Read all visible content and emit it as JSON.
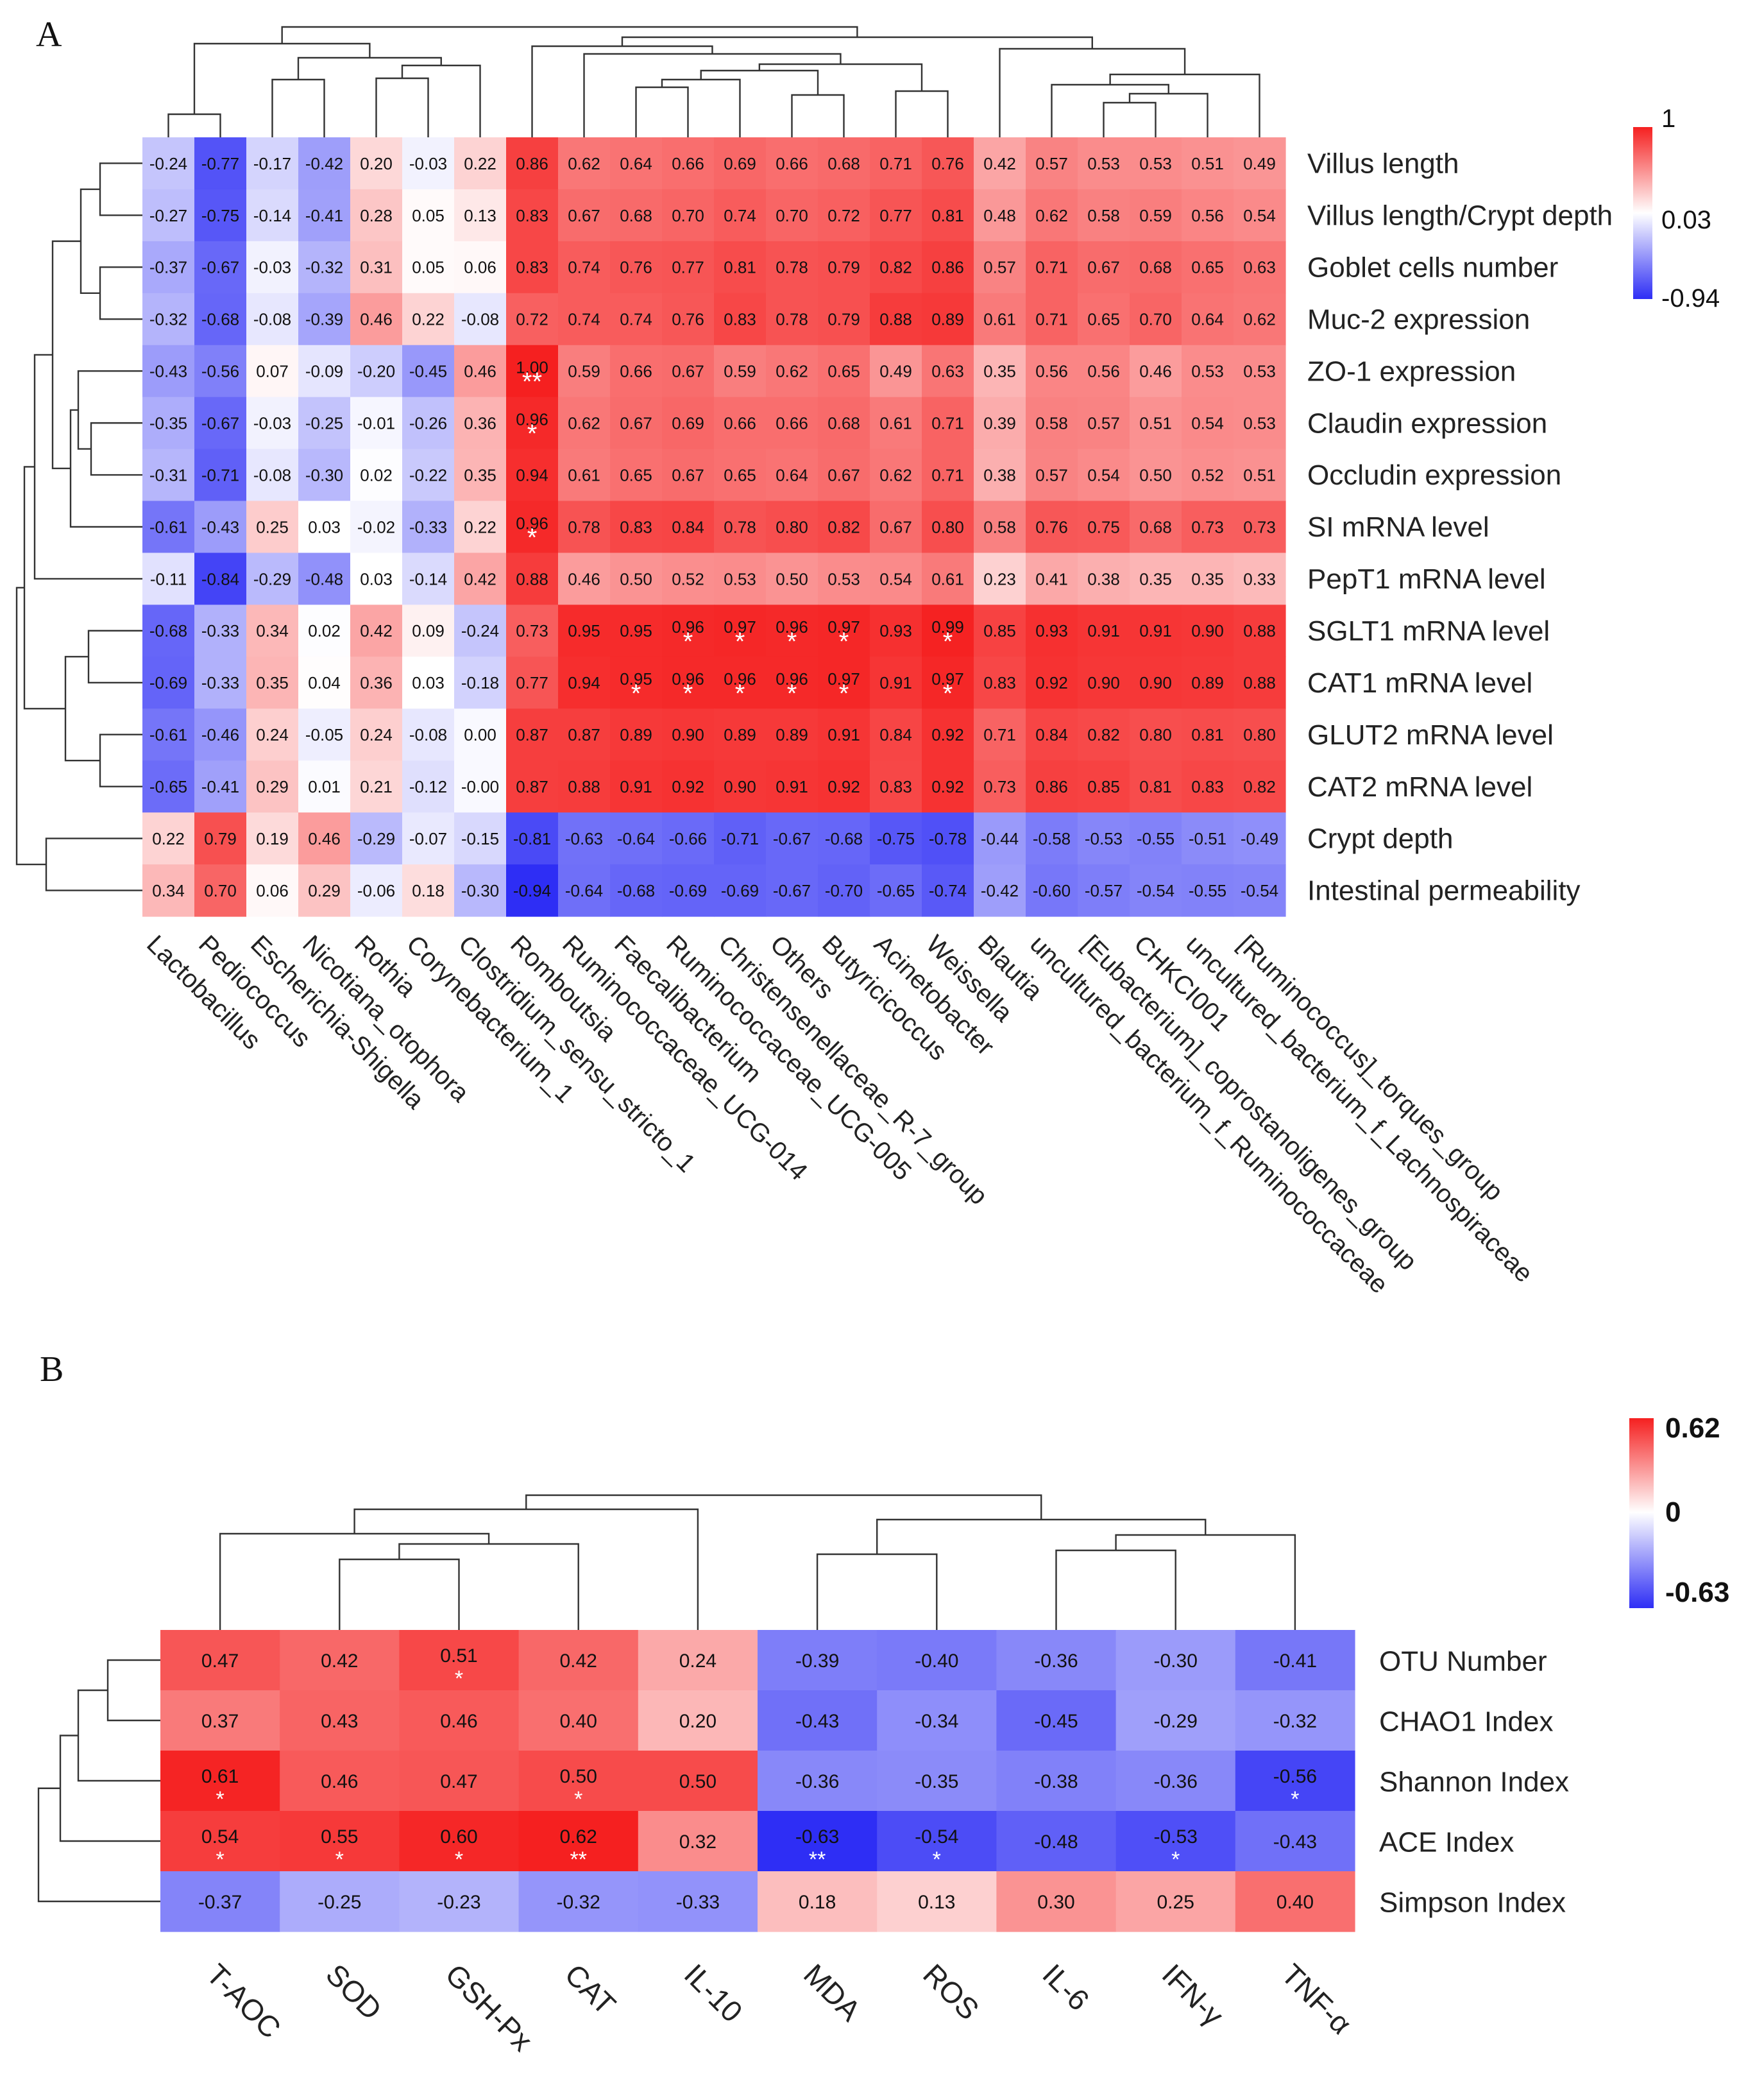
{
  "chart_data": [
    {
      "panel": "A",
      "type": "heatmap",
      "rows": [
        "Villus length",
        "Villus length/Crypt depth",
        "Goblet cells number",
        "Muc-2 expression",
        "ZO-1 expression",
        "Claudin expression",
        "Occludin expression",
        "SI mRNA level",
        "PepT1 mRNA level",
        "SGLT1 mRNA level",
        "CAT1 mRNA level",
        "GLUT2 mRNA level",
        "CAT2 mRNA level",
        "Crypt depth",
        "Intestinal permeability"
      ],
      "columns": [
        "Lactobacillus",
        "Pediococcus",
        "Escherichia-Shigella",
        "Nicotiana_otophora",
        "Rothia",
        "Corynebacterium_1",
        "Clostridium_sensu_stricto_1",
        "Romboutsia",
        "Ruminococcaceae_UCG-014",
        "Faecalibacterium",
        "Ruminococcaceae_UCG-005",
        "Christensenellaceae_R-7_group",
        "Others",
        "Butyricicoccus",
        "Acinetobacter",
        "Weissella",
        "Blautia",
        "uncultured_bacterium_f_Ruminococcaceae",
        "[Eubacterium]_coprostanoligenes_group",
        "CHKCI001",
        "uncultured_bacterium_f_Lachnospiraceae",
        "[Ruminococcus]_torques_group"
      ],
      "values": [
        [
          "-0.24",
          "-0.77",
          "-0.17",
          "-0.42",
          "0.20",
          "-0.03",
          "0.22",
          "0.86",
          "0.62",
          "0.64",
          "0.66",
          "0.69",
          "0.66",
          "0.68",
          "0.71",
          "0.76",
          "0.42",
          "0.57",
          "0.53",
          "0.53",
          "0.51",
          "0.49"
        ],
        [
          "-0.27",
          "-0.75",
          "-0.14",
          "-0.41",
          "0.28",
          "0.05",
          "0.13",
          "0.83",
          "0.67",
          "0.68",
          "0.70",
          "0.74",
          "0.70",
          "0.72",
          "0.77",
          "0.81",
          "0.48",
          "0.62",
          "0.58",
          "0.59",
          "0.56",
          "0.54"
        ],
        [
          "-0.37",
          "-0.67",
          "-0.03",
          "-0.32",
          "0.31",
          "0.05",
          "0.06",
          "0.83",
          "0.74",
          "0.76",
          "0.77",
          "0.81",
          "0.78",
          "0.79",
          "0.82",
          "0.86",
          "0.57",
          "0.71",
          "0.67",
          "0.68",
          "0.65",
          "0.63"
        ],
        [
          "-0.32",
          "-0.68",
          "-0.08",
          "-0.39",
          "0.46",
          "0.22",
          "-0.08",
          "0.72",
          "0.74",
          "0.74",
          "0.76",
          "0.83",
          "0.78",
          "0.79",
          "0.88",
          "0.89",
          "0.61",
          "0.71",
          "0.65",
          "0.70",
          "0.64",
          "0.62"
        ],
        [
          "-0.43",
          "-0.56",
          "0.07",
          "-0.09",
          "-0.20",
          "-0.45",
          "0.46",
          "1.00",
          "0.59",
          "0.66",
          "0.67",
          "0.59",
          "0.62",
          "0.65",
          "0.49",
          "0.63",
          "0.35",
          "0.56",
          "0.56",
          "0.46",
          "0.53",
          "0.53"
        ],
        [
          "-0.35",
          "-0.67",
          "-0.03",
          "-0.25",
          "-0.01",
          "-0.26",
          "0.36",
          "0.96",
          "0.62",
          "0.67",
          "0.69",
          "0.66",
          "0.66",
          "0.68",
          "0.61",
          "0.71",
          "0.39",
          "0.58",
          "0.57",
          "0.51",
          "0.54",
          "0.53"
        ],
        [
          "-0.31",
          "-0.71",
          "-0.08",
          "-0.30",
          "0.02",
          "-0.22",
          "0.35",
          "0.94",
          "0.61",
          "0.65",
          "0.67",
          "0.65",
          "0.64",
          "0.67",
          "0.62",
          "0.71",
          "0.38",
          "0.57",
          "0.54",
          "0.50",
          "0.52",
          "0.51"
        ],
        [
          "-0.61",
          "-0.43",
          "0.25",
          "0.03",
          "-0.02",
          "-0.33",
          "0.22",
          "0.96",
          "0.78",
          "0.83",
          "0.84",
          "0.78",
          "0.80",
          "0.82",
          "0.67",
          "0.80",
          "0.58",
          "0.76",
          "0.75",
          "0.68",
          "0.73",
          "0.73"
        ],
        [
          "-0.11",
          "-0.84",
          "-0.29",
          "-0.48",
          "0.03",
          "-0.14",
          "0.42",
          "0.88",
          "0.46",
          "0.50",
          "0.52",
          "0.53",
          "0.50",
          "0.53",
          "0.54",
          "0.61",
          "0.23",
          "0.41",
          "0.38",
          "0.35",
          "0.35",
          "0.33"
        ],
        [
          "-0.68",
          "-0.33",
          "0.34",
          "0.02",
          "0.42",
          "0.09",
          "-0.24",
          "0.73",
          "0.95",
          "0.95",
          "0.96",
          "0.97",
          "0.96",
          "0.97",
          "0.93",
          "0.99",
          "0.85",
          "0.93",
          "0.91",
          "0.91",
          "0.90",
          "0.88"
        ],
        [
          "-0.69",
          "-0.33",
          "0.35",
          "0.04",
          "0.36",
          "0.03",
          "-0.18",
          "0.77",
          "0.94",
          "0.95",
          "0.96",
          "0.96",
          "0.96",
          "0.97",
          "0.91",
          "0.97",
          "0.83",
          "0.92",
          "0.90",
          "0.90",
          "0.89",
          "0.88"
        ],
        [
          "-0.61",
          "-0.46",
          "0.24",
          "-0.05",
          "0.24",
          "-0.08",
          "0.00",
          "0.87",
          "0.87",
          "0.89",
          "0.90",
          "0.89",
          "0.89",
          "0.91",
          "0.84",
          "0.92",
          "0.71",
          "0.84",
          "0.82",
          "0.80",
          "0.81",
          "0.80"
        ],
        [
          "-0.65",
          "-0.41",
          "0.29",
          "0.01",
          "0.21",
          "-0.12",
          "-0.00",
          "0.87",
          "0.88",
          "0.91",
          "0.92",
          "0.90",
          "0.91",
          "0.92",
          "0.83",
          "0.92",
          "0.73",
          "0.86",
          "0.85",
          "0.81",
          "0.83",
          "0.82"
        ],
        [
          "0.22",
          "0.79",
          "0.19",
          "0.46",
          "-0.29",
          "-0.07",
          "-0.15",
          "-0.81",
          "-0.63",
          "-0.64",
          "-0.66",
          "-0.71",
          "-0.67",
          "-0.68",
          "-0.75",
          "-0.78",
          "-0.44",
          "-0.58",
          "-0.53",
          "-0.55",
          "-0.51",
          "-0.49"
        ],
        [
          "0.34",
          "0.70",
          "0.06",
          "0.29",
          "-0.06",
          "0.18",
          "-0.30",
          "-0.94",
          "-0.64",
          "-0.68",
          "-0.69",
          "-0.69",
          "-0.67",
          "-0.70",
          "-0.65",
          "-0.74",
          "-0.42",
          "-0.60",
          "-0.57",
          "-0.54",
          "-0.55",
          "-0.54"
        ]
      ],
      "significance": [
        {
          "row": 4,
          "col": 7,
          "mark": "**"
        },
        {
          "row": 5,
          "col": 7,
          "mark": "*"
        },
        {
          "row": 7,
          "col": 7,
          "mark": "*"
        },
        {
          "row": 9,
          "col": 10,
          "mark": "*"
        },
        {
          "row": 9,
          "col": 11,
          "mark": "*"
        },
        {
          "row": 9,
          "col": 12,
          "mark": "*"
        },
        {
          "row": 9,
          "col": 13,
          "mark": "*"
        },
        {
          "row": 9,
          "col": 15,
          "mark": "*"
        },
        {
          "row": 10,
          "col": 9,
          "mark": "*"
        },
        {
          "row": 10,
          "col": 10,
          "mark": "*"
        },
        {
          "row": 10,
          "col": 11,
          "mark": "*"
        },
        {
          "row": 10,
          "col": 12,
          "mark": "*"
        },
        {
          "row": 10,
          "col": 13,
          "mark": "*"
        },
        {
          "row": 10,
          "col": 15,
          "mark": "*"
        }
      ],
      "colorscale": {
        "min": -0.94,
        "mid": 0.03,
        "max": 1,
        "low_color": "#2e2ef5",
        "mid_color": "#ffffff",
        "high_color": "#f52020"
      },
      "legend_labels": [
        "1",
        "0.03",
        "-0.94"
      ]
    },
    {
      "panel": "B",
      "type": "heatmap",
      "rows": [
        "OTU Number",
        "CHAO1 Index",
        "Shannon Index",
        "ACE Index",
        "Simpson Index"
      ],
      "columns": [
        "T-AOC",
        "SOD",
        "GSH-Px",
        "CAT",
        "IL-10",
        "MDA",
        "ROS",
        "IL-6",
        "IFN-γ",
        "TNF-α"
      ],
      "values": [
        [
          "0.47",
          "0.42",
          "0.51",
          "0.42",
          "0.24",
          "-0.39",
          "-0.40",
          "-0.36",
          "-0.30",
          "-0.41"
        ],
        [
          "0.37",
          "0.43",
          "0.46",
          "0.40",
          "0.20",
          "-0.43",
          "-0.34",
          "-0.45",
          "-0.29",
          "-0.32"
        ],
        [
          "0.61",
          "0.46",
          "0.47",
          "0.50",
          "0.50",
          "-0.36",
          "-0.35",
          "-0.38",
          "-0.36",
          "-0.56"
        ],
        [
          "0.54",
          "0.55",
          "0.60",
          "0.62",
          "0.32",
          "-0.63",
          "-0.54",
          "-0.48",
          "-0.53",
          "-0.43"
        ],
        [
          "-0.37",
          "-0.25",
          "-0.23",
          "-0.32",
          "-0.33",
          "0.18",
          "0.13",
          "0.30",
          "0.25",
          "0.40"
        ]
      ],
      "significance": [
        {
          "row": 0,
          "col": 2,
          "mark": "*"
        },
        {
          "row": 2,
          "col": 0,
          "mark": "*"
        },
        {
          "row": 2,
          "col": 3,
          "mark": "*"
        },
        {
          "row": 2,
          "col": 9,
          "mark": "*"
        },
        {
          "row": 3,
          "col": 0,
          "mark": "*"
        },
        {
          "row": 3,
          "col": 1,
          "mark": "*"
        },
        {
          "row": 3,
          "col": 2,
          "mark": "*"
        },
        {
          "row": 3,
          "col": 3,
          "mark": "**"
        },
        {
          "row": 3,
          "col": 5,
          "mark": "**"
        },
        {
          "row": 3,
          "col": 6,
          "mark": "*"
        },
        {
          "row": 3,
          "col": 8,
          "mark": "*"
        }
      ],
      "colorscale": {
        "min": -0.63,
        "mid": 0,
        "max": 0.62,
        "low_color": "#2e2ef5",
        "mid_color": "#ffffff",
        "high_color": "#f52020"
      },
      "legend_labels": [
        "0.62",
        "0",
        "-0.63"
      ]
    }
  ]
}
